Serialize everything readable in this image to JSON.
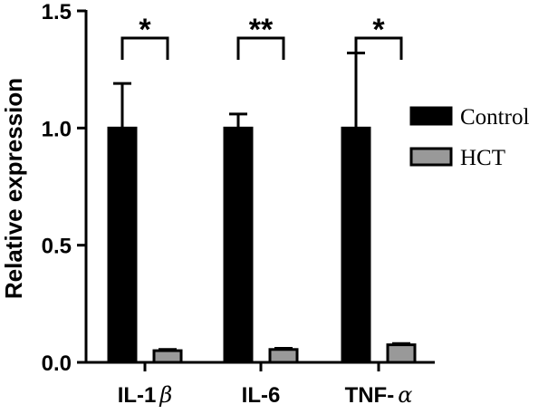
{
  "chart_data": {
    "type": "bar",
    "categories": [
      {
        "prefix": "IL-1",
        "greek": "β"
      },
      {
        "prefix": "IL-6",
        "greek": ""
      },
      {
        "prefix": "TNF-",
        "greek": "α"
      }
    ],
    "series": [
      {
        "name": "Control",
        "values": [
          1.0,
          1.0,
          1.0
        ],
        "errors": [
          0.19,
          0.06,
          0.32
        ],
        "color": "#000000"
      },
      {
        "name": "HCT",
        "values": [
          0.05,
          0.055,
          0.075
        ],
        "errors": [
          0.005,
          0.005,
          0.005
        ],
        "color": "#999999"
      }
    ],
    "ylabel": "Relative expression",
    "ylim": [
      0,
      1.5
    ],
    "yticks": [
      "0.0",
      "0.5",
      "1.0",
      "1.5"
    ],
    "ytick_values": [
      0,
      0.5,
      1.0,
      1.5
    ],
    "significance": [
      "*",
      "**",
      "*"
    ],
    "legend_position": "right",
    "grid": false
  }
}
